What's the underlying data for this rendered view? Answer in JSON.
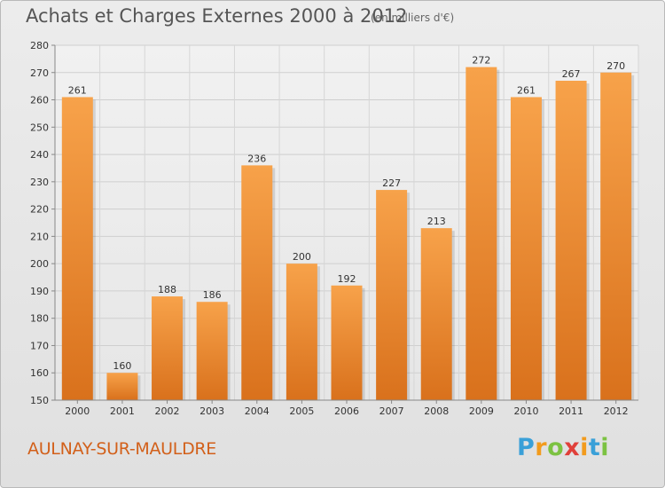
{
  "header": {
    "title": "Achats et Charges Externes 2000 à 2012",
    "subtitle": "(en milliers d'€)"
  },
  "footer": {
    "city": "AULNAY-SUR-MAULDRE",
    "logo_letters": [
      "P",
      "r",
      "o",
      "x",
      "i",
      "t",
      "i"
    ],
    "logo_colors": [
      "#3aa0d8",
      "#f29b1d",
      "#7cc242",
      "#e0403a",
      "#f29b1d",
      "#3aa0d8",
      "#7cc242"
    ]
  },
  "chart_data": {
    "type": "bar",
    "title": "Achats et Charges Externes 2000 à 2012",
    "subtitle": "(en milliers d'€)",
    "categories": [
      "2000",
      "2001",
      "2002",
      "2003",
      "2004",
      "2005",
      "2006",
      "2007",
      "2008",
      "2009",
      "2010",
      "2011",
      "2012"
    ],
    "values": [
      261,
      160,
      188,
      186,
      236,
      200,
      192,
      227,
      213,
      272,
      261,
      267,
      270
    ],
    "ylim": [
      150,
      280
    ],
    "yticks": [
      150,
      160,
      170,
      180,
      190,
      200,
      210,
      220,
      230,
      240,
      250,
      260,
      270,
      280
    ],
    "grid": true,
    "bar_color_top": "#f7a24a",
    "bar_color_bottom": "#d9711c"
  }
}
